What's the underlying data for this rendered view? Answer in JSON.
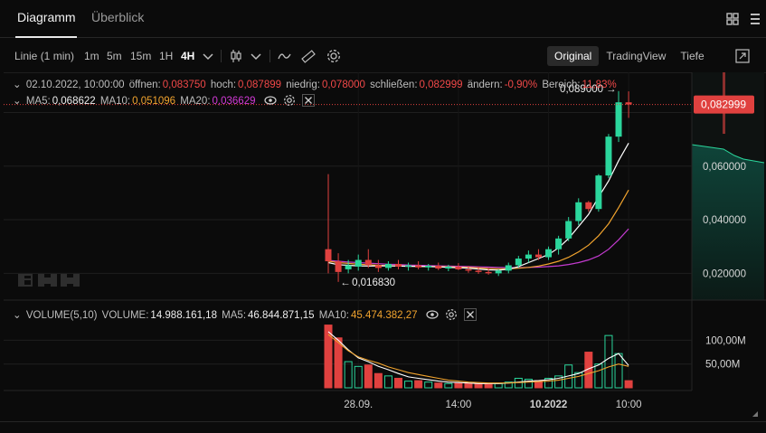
{
  "header": {
    "tabs": [
      {
        "label": "Diagramm",
        "active": true
      },
      {
        "label": "Überblick",
        "active": false
      }
    ]
  },
  "toolbar": {
    "chart_type": "Linie (1 min)",
    "timeframes": [
      "1m",
      "5m",
      "15m",
      "1H",
      "4H"
    ],
    "active_timeframe": "4H",
    "views": [
      "Original",
      "TradingView",
      "Tiefe"
    ],
    "active_view": "Original"
  },
  "ohlc": {
    "date": "02.10.2022, 10:00:00",
    "open_label": "öffnen:",
    "open": "0,083750",
    "high_label": "hoch:",
    "high": "0,087899",
    "low_label": "niedrig:",
    "low": "0,078000",
    "close_label": "schließen:",
    "close": "0,082999",
    "change_label": "ändern:",
    "change": "-0,90%",
    "range_label": "Bereich:",
    "range": "11,83%"
  },
  "ma": {
    "ma5_label": "MA5:",
    "ma5": "0,068622",
    "ma10_label": "MA10:",
    "ma10": "0,051096",
    "ma20_label": "MA20:",
    "ma20": "0,036629"
  },
  "volume_legend": {
    "title": "VOLUME(5,10)",
    "volume_label": "VOLUME:",
    "volume": "14.988.161,18",
    "ma5_label": "MA5:",
    "ma5": "46.844.871,15",
    "ma10_label": "MA10:",
    "ma10": "45.474.382,27"
  },
  "price_axis": [
    "0,060000",
    "0,040000",
    "0,020000"
  ],
  "current_price": "0,082999",
  "volume_axis": [
    "100,00M",
    "50,00M"
  ],
  "time_axis": [
    {
      "label": "28.09.",
      "bold": false
    },
    {
      "label": "14:00",
      "bold": false
    },
    {
      "label": "10.2022",
      "bold": true
    },
    {
      "label": "10:00",
      "bold": false
    }
  ],
  "annotations": {
    "high": "0,089000",
    "low": "0,016830"
  },
  "colors": {
    "up": "#2bd69c",
    "down": "#e0413f",
    "ma5": "#ffffff",
    "ma10": "#f0a32e",
    "ma20": "#c43bd0",
    "background": "#0b0b0b"
  },
  "chart_data": {
    "type": "candlestick",
    "ylim": [
      0.01,
      0.095
    ],
    "candles": [
      {
        "o": 0.029,
        "h": 0.057,
        "l": 0.02,
        "c": 0.0245
      },
      {
        "o": 0.0245,
        "h": 0.0275,
        "l": 0.0168,
        "c": 0.0205
      },
      {
        "o": 0.0215,
        "h": 0.025,
        "l": 0.02,
        "c": 0.023
      },
      {
        "o": 0.0225,
        "h": 0.027,
        "l": 0.021,
        "c": 0.025
      },
      {
        "o": 0.025,
        "h": 0.029,
        "l": 0.022,
        "c": 0.023
      },
      {
        "o": 0.023,
        "h": 0.025,
        "l": 0.0205,
        "c": 0.022
      },
      {
        "o": 0.022,
        "h": 0.0245,
        "l": 0.021,
        "c": 0.0235
      },
      {
        "o": 0.0235,
        "h": 0.025,
        "l": 0.0215,
        "c": 0.0225
      },
      {
        "o": 0.0225,
        "h": 0.024,
        "l": 0.021,
        "c": 0.023
      },
      {
        "o": 0.023,
        "h": 0.0245,
        "l": 0.0215,
        "c": 0.0222
      },
      {
        "o": 0.0222,
        "h": 0.0235,
        "l": 0.021,
        "c": 0.0228
      },
      {
        "o": 0.0228,
        "h": 0.024,
        "l": 0.0212,
        "c": 0.0218
      },
      {
        "o": 0.0218,
        "h": 0.0232,
        "l": 0.0208,
        "c": 0.0225
      },
      {
        "o": 0.0225,
        "h": 0.0238,
        "l": 0.0212,
        "c": 0.0215
      },
      {
        "o": 0.0215,
        "h": 0.0228,
        "l": 0.0202,
        "c": 0.021
      },
      {
        "o": 0.021,
        "h": 0.0225,
        "l": 0.0198,
        "c": 0.0205
      },
      {
        "o": 0.0205,
        "h": 0.022,
        "l": 0.0195,
        "c": 0.02
      },
      {
        "o": 0.02,
        "h": 0.0215,
        "l": 0.019,
        "c": 0.021
      },
      {
        "o": 0.021,
        "h": 0.024,
        "l": 0.02,
        "c": 0.023
      },
      {
        "o": 0.023,
        "h": 0.0265,
        "l": 0.022,
        "c": 0.0255
      },
      {
        "o": 0.0255,
        "h": 0.0285,
        "l": 0.024,
        "c": 0.027
      },
      {
        "o": 0.027,
        "h": 0.029,
        "l": 0.025,
        "c": 0.026
      },
      {
        "o": 0.026,
        "h": 0.03,
        "l": 0.025,
        "c": 0.029
      },
      {
        "o": 0.029,
        "h": 0.034,
        "l": 0.027,
        "c": 0.033
      },
      {
        "o": 0.033,
        "h": 0.041,
        "l": 0.032,
        "c": 0.0395
      },
      {
        "o": 0.0395,
        "h": 0.048,
        "l": 0.038,
        "c": 0.0465
      },
      {
        "o": 0.0465,
        "h": 0.047,
        "l": 0.043,
        "c": 0.044
      },
      {
        "o": 0.044,
        "h": 0.057,
        "l": 0.043,
        "c": 0.0565
      },
      {
        "o": 0.0565,
        "h": 0.072,
        "l": 0.0555,
        "c": 0.071
      },
      {
        "o": 0.071,
        "h": 0.088,
        "l": 0.069,
        "c": 0.0838
      },
      {
        "o": 0.0838,
        "h": 0.0879,
        "l": 0.078,
        "c": 0.083
      }
    ],
    "ma5": [
      0.024,
      0.0232,
      0.023,
      0.0228,
      0.0227,
      0.0228,
      0.0228,
      0.0227,
      0.0226,
      0.0226,
      0.0225,
      0.0224,
      0.0222,
      0.0221,
      0.0219,
      0.0216,
      0.0213,
      0.0212,
      0.0215,
      0.0225,
      0.024,
      0.0255,
      0.027,
      0.0295,
      0.033,
      0.0375,
      0.042,
      0.0485,
      0.0545,
      0.062,
      0.0686
    ],
    "ma10": [
      0.0245,
      0.024,
      0.0237,
      0.0234,
      0.0232,
      0.023,
      0.0229,
      0.0228,
      0.0227,
      0.0226,
      0.0225,
      0.0225,
      0.0224,
      0.0223,
      0.0222,
      0.022,
      0.0218,
      0.0217,
      0.0217,
      0.0219,
      0.0222,
      0.0227,
      0.0235,
      0.0245,
      0.026,
      0.028,
      0.0305,
      0.034,
      0.0385,
      0.0445,
      0.0511
    ],
    "ma20": [
      0.0248,
      0.0245,
      0.0242,
      0.024,
      0.0238,
      0.0236,
      0.0234,
      0.0233,
      0.0231,
      0.023,
      0.0229,
      0.0228,
      0.0227,
      0.0226,
      0.0225,
      0.0224,
      0.0223,
      0.0222,
      0.0221,
      0.0221,
      0.0222,
      0.0223,
      0.0225,
      0.0228,
      0.0233,
      0.024,
      0.025,
      0.0265,
      0.029,
      0.0325,
      0.0366
    ],
    "volume_ylim": [
      0,
      135
    ],
    "volume": [
      132,
      105,
      55,
      45,
      48,
      30,
      25,
      20,
      14,
      15,
      12,
      10,
      9,
      10,
      9,
      8,
      8,
      9,
      12,
      20,
      18,
      15,
      20,
      25,
      48,
      32,
      75,
      50,
      110,
      72,
      15
    ],
    "volume_ma5": [
      118,
      100,
      80,
      63,
      55,
      45,
      38,
      30,
      23,
      20,
      17,
      14,
      12,
      11,
      10,
      9,
      9,
      9,
      10,
      12,
      14,
      15,
      17,
      20,
      25,
      30,
      40,
      48,
      62,
      72,
      47
    ],
    "volume_ma10": [
      112,
      95,
      78,
      65,
      58,
      52,
      44,
      38,
      32,
      28,
      24,
      20,
      16,
      14,
      12,
      11,
      10,
      10,
      10,
      11,
      12,
      13,
      14,
      16,
      20,
      24,
      30,
      36,
      44,
      50,
      45
    ]
  }
}
